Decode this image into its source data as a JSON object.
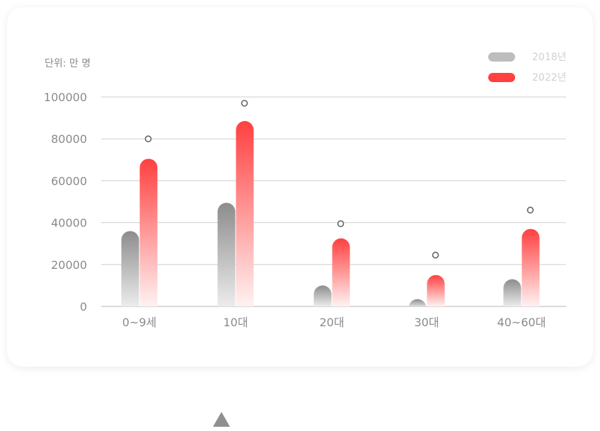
{
  "unit_label": "단위: 만 명",
  "legend": [
    {
      "label": "2018년",
      "color": "#bdbdbd"
    },
    {
      "label": "2022년",
      "color": "#ff4040"
    }
  ],
  "chart_data": {
    "type": "bar",
    "categories": [
      "0~9세",
      "10대",
      "20대",
      "30대",
      "40~60대"
    ],
    "series": [
      {
        "name": "2018년",
        "values": [
          36000,
          49500,
          10000,
          3500,
          13000
        ],
        "color": "#8c8c8c"
      },
      {
        "name": "2022년",
        "values": [
          70500,
          88500,
          32500,
          15000,
          37000
        ],
        "color": "#ff4040"
      }
    ],
    "markers": [
      80000,
      97000,
      39500,
      24500,
      46000
    ],
    "yticks": [
      0,
      20000,
      40000,
      60000,
      80000,
      100000
    ],
    "ylim": [
      0,
      100000
    ],
    "grid": true,
    "legend_position": "top-right"
  }
}
